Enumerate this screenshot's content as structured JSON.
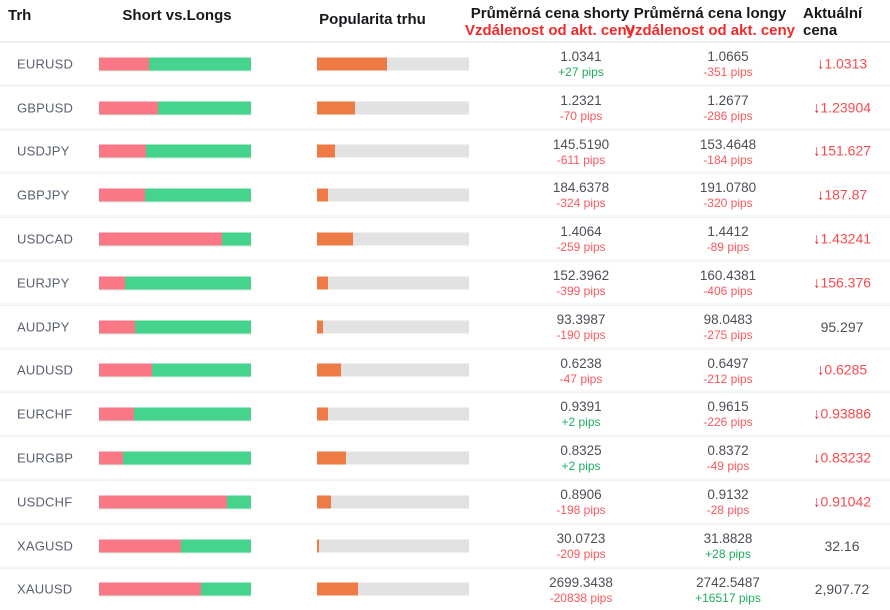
{
  "header": {
    "market": "Trh",
    "shorts_vs_longs": "Short vs.Longs",
    "popularity": "Popularita trhu",
    "avg_short_price": "Průměrná cena shorty",
    "avg_long_price": "Průměrná cena longy",
    "distance_label": "Vzdálenost od akt. ceny",
    "current_line1": "Aktuální",
    "current_line2": "cena"
  },
  "icons": {
    "down_arrow": "↓"
  },
  "colors": {
    "short_bar": "#fa7785",
    "long_bar": "#46d38d",
    "popularity_fill": "#ee7a45",
    "popularity_track": "#e2e2e2",
    "header_red": "#ee2b2b",
    "pips_green": "#1fae5e",
    "pips_red": "#f9595e",
    "price_down_red": "#f84b50"
  },
  "rows": [
    {
      "market": "EURUSD",
      "short_pct": 33,
      "long_pct": 67,
      "popularity_pct": 46,
      "short_price": "1.0341",
      "short_dist": "+27 pips",
      "long_price": "1.0665",
      "long_dist": "-351 pips",
      "current": "1.0313",
      "current_dir": "down"
    },
    {
      "market": "GBPUSD",
      "short_pct": 39,
      "long_pct": 61,
      "popularity_pct": 25,
      "short_price": "1.2321",
      "short_dist": "-70 pips",
      "long_price": "1.2677",
      "long_dist": "-286 pips",
      "current": "1.23904",
      "current_dir": "down"
    },
    {
      "market": "USDJPY",
      "short_pct": 31,
      "long_pct": 69,
      "popularity_pct": 12,
      "short_price": "145.5190",
      "short_dist": "-611 pips",
      "long_price": "153.4648",
      "long_dist": "-184 pips",
      "current": "151.627",
      "current_dir": "down"
    },
    {
      "market": "GBPJPY",
      "short_pct": 30,
      "long_pct": 70,
      "popularity_pct": 7,
      "short_price": "184.6378",
      "short_dist": "-324 pips",
      "long_price": "191.0780",
      "long_dist": "-320 pips",
      "current": "187.87",
      "current_dir": "down"
    },
    {
      "market": "USDCAD",
      "short_pct": 81,
      "long_pct": 19,
      "popularity_pct": 24,
      "short_price": "1.4064",
      "short_dist": "-259 pips",
      "long_price": "1.4412",
      "long_dist": "-89 pips",
      "current": "1.43241",
      "current_dir": "down"
    },
    {
      "market": "EURJPY",
      "short_pct": 17,
      "long_pct": 83,
      "popularity_pct": 7,
      "short_price": "152.3962",
      "short_dist": "-399 pips",
      "long_price": "160.4381",
      "long_dist": "-406 pips",
      "current": "156.376",
      "current_dir": "down"
    },
    {
      "market": "AUDJPY",
      "short_pct": 24,
      "long_pct": 76,
      "popularity_pct": 4,
      "short_price": "93.3987",
      "short_dist": "-190 pips",
      "long_price": "98.0483",
      "long_dist": "-275 pips",
      "current": "95.297",
      "current_dir": "none"
    },
    {
      "market": "AUDUSD",
      "short_pct": 35,
      "long_pct": 65,
      "popularity_pct": 16,
      "short_price": "0.6238",
      "short_dist": "-47 pips",
      "long_price": "0.6497",
      "long_dist": "-212 pips",
      "current": "0.6285",
      "current_dir": "down"
    },
    {
      "market": "EURCHF",
      "short_pct": 23,
      "long_pct": 77,
      "popularity_pct": 7,
      "short_price": "0.9391",
      "short_dist": "+2 pips",
      "long_price": "0.9615",
      "long_dist": "-226 pips",
      "current": "0.93886",
      "current_dir": "down"
    },
    {
      "market": "EURGBP",
      "short_pct": 16,
      "long_pct": 84,
      "popularity_pct": 19,
      "short_price": "0.8325",
      "short_dist": "+2 pips",
      "long_price": "0.8372",
      "long_dist": "-49 pips",
      "current": "0.83232",
      "current_dir": "down"
    },
    {
      "market": "USDCHF",
      "short_pct": 84,
      "long_pct": 16,
      "popularity_pct": 9,
      "short_price": "0.8906",
      "short_dist": "-198 pips",
      "long_price": "0.9132",
      "long_dist": "-28 pips",
      "current": "0.91042",
      "current_dir": "down"
    },
    {
      "market": "XAGUSD",
      "short_pct": 54,
      "long_pct": 46,
      "popularity_pct": 1.5,
      "short_price": "30.0723",
      "short_dist": "-209 pips",
      "long_price": "31.8828",
      "long_dist": "+28 pips",
      "current": "32.16",
      "current_dir": "none"
    },
    {
      "market": "XAUUSD",
      "short_pct": 67,
      "long_pct": 33,
      "popularity_pct": 27,
      "short_price": "2699.3438",
      "short_dist": "-20838 pips",
      "long_price": "2742.5487",
      "long_dist": "+16517 pips",
      "current": "2,907.72",
      "current_dir": "none"
    }
  ]
}
